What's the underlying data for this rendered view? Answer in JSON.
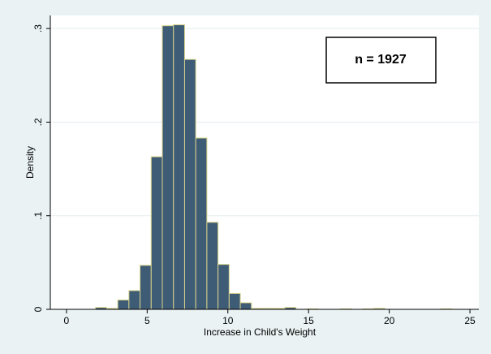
{
  "chart_data": {
    "type": "histogram",
    "x_label": "Increase in Child's Weight",
    "y_label": "Density",
    "annotation": "n = 1927",
    "bins": [
      1.8,
      2.49,
      3.18,
      3.87,
      4.56,
      5.25,
      5.94,
      6.63,
      7.32,
      8.01,
      8.7,
      9.39,
      10.08,
      10.77,
      11.46,
      12.15,
      12.84,
      13.53,
      14.22,
      14.91,
      15.6,
      16.29,
      16.98,
      17.67,
      18.36,
      19.05,
      19.74,
      20.43,
      21.12,
      21.81,
      22.5,
      23.19,
      23.88
    ],
    "values": [
      0.002,
      0.001,
      0.01,
      0.02,
      0.047,
      0.163,
      0.303,
      0.304,
      0.267,
      0.183,
      0.093,
      0.048,
      0.017,
      0.007,
      0.001,
      0.001,
      0.001,
      0.002,
      0,
      0.0005,
      0,
      0,
      0.0005,
      0,
      0.0005,
      0.001,
      0,
      0,
      0,
      0,
      0,
      0.0005
    ],
    "color": "#3e5c76",
    "edge_color": "#d8d28a",
    "xlim": [
      -1,
      25.55
    ],
    "ylim": [
      0,
      0.314
    ],
    "xticks": [
      0,
      5,
      10,
      15,
      20,
      25
    ],
    "yticks": [
      0,
      {
        "value": 0.1,
        "label": ".1"
      },
      {
        "value": 0.2,
        "label": ".2"
      },
      {
        "value": 0.3,
        "label": ".3"
      }
    ],
    "grid": true
  }
}
